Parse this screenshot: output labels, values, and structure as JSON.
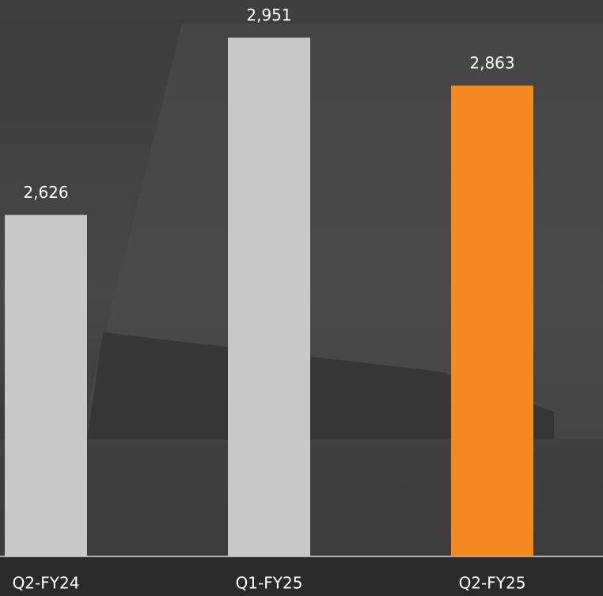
{
  "chart_data": {
    "type": "bar",
    "categories": [
      "Q2-FY24",
      "Q1-FY25",
      "Q2-FY25"
    ],
    "values": [
      2626,
      2951,
      2863
    ],
    "value_labels": [
      "2,626",
      "2,951",
      "2,863"
    ],
    "colors": [
      "#c8c8c8",
      "#c8c8c8",
      "#f28a20"
    ],
    "ylim": [
      2000,
      3020
    ]
  }
}
